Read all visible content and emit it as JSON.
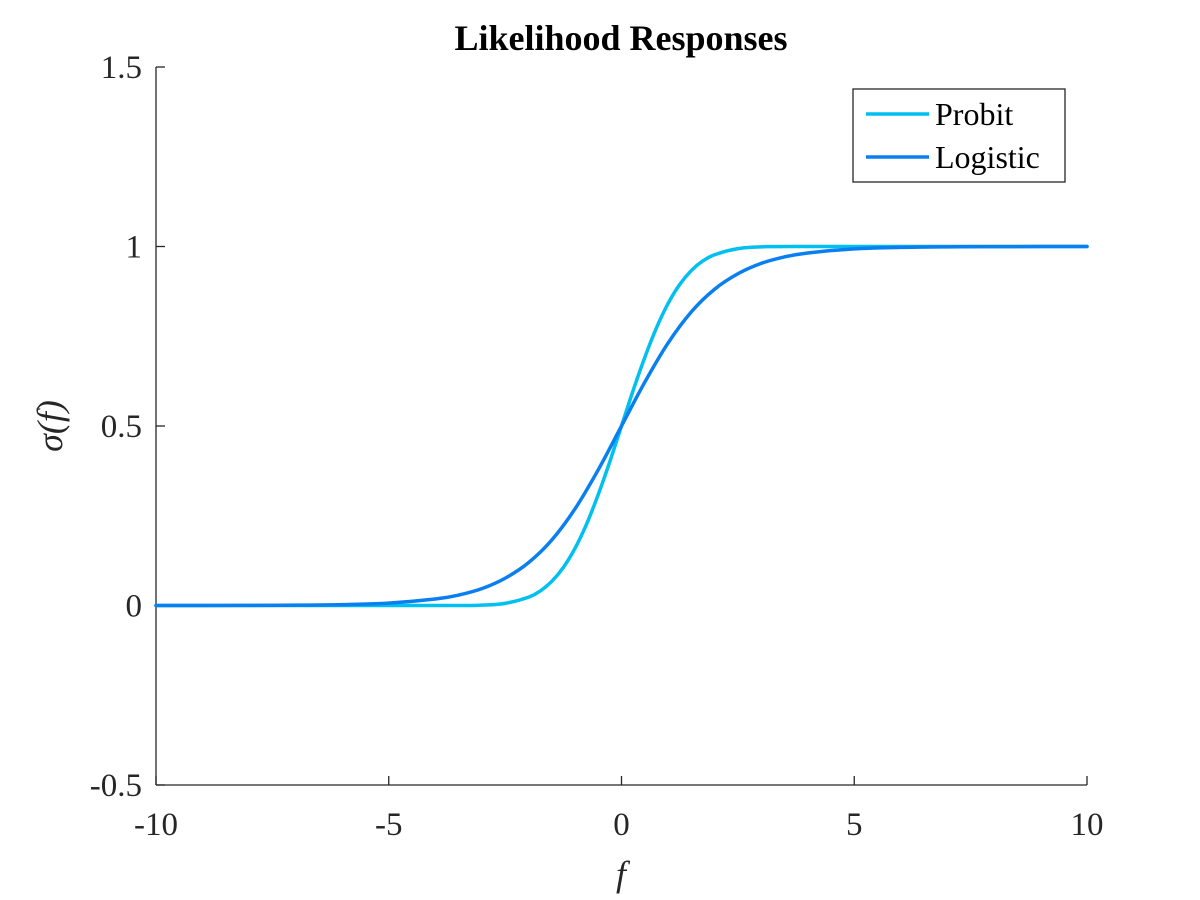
{
  "colors": {
    "probit": "#00c0f0",
    "logistic": "#0a7ff0",
    "axis": "#262626",
    "legend_border": "#262626"
  },
  "chart_data": {
    "type": "line",
    "title": "Likelihood Responses",
    "xlabel": "f",
    "ylabel": "σ(f)",
    "xlim": [
      -10,
      10
    ],
    "ylim": [
      -0.5,
      1.5
    ],
    "xticks": [
      -10,
      -5,
      0,
      5,
      10
    ],
    "xtick_labels": [
      "-10",
      "-5",
      "0",
      "5",
      "10"
    ],
    "yticks": [
      -0.5,
      0,
      0.5,
      1,
      1.5
    ],
    "ytick_labels": [
      "-0.5",
      "0",
      "0.5",
      "1",
      "1.5"
    ],
    "grid": false,
    "legend_position": "top-right",
    "series": [
      {
        "name": "Probit",
        "x": [
          -10,
          -4,
          -3,
          -2.5,
          -2,
          -1.75,
          -1.5,
          -1.25,
          -1,
          -0.75,
          -0.5,
          -0.25,
          0,
          0.25,
          0.5,
          0.75,
          1,
          1.25,
          1.5,
          1.75,
          2,
          2.5,
          3,
          4,
          10
        ],
        "y": [
          0,
          0,
          0.001,
          0.006,
          0.023,
          0.04,
          0.067,
          0.106,
          0.159,
          0.227,
          0.309,
          0.401,
          0.5,
          0.599,
          0.691,
          0.773,
          0.841,
          0.894,
          0.933,
          0.96,
          0.977,
          0.994,
          0.999,
          1,
          1
        ]
      },
      {
        "name": "Logistic",
        "x": [
          -10,
          -8,
          -7,
          -6,
          -5,
          -4,
          -3.5,
          -3,
          -2.5,
          -2,
          -1.5,
          -1,
          -0.5,
          0,
          0.5,
          1,
          1.5,
          2,
          2.5,
          3,
          3.5,
          4,
          5,
          6,
          7,
          8,
          10
        ],
        "y": [
          5e-05,
          0.0003,
          0.0009,
          0.0025,
          0.0067,
          0.018,
          0.029,
          0.047,
          0.076,
          0.119,
          0.182,
          0.269,
          0.378,
          0.5,
          0.622,
          0.731,
          0.818,
          0.881,
          0.924,
          0.953,
          0.971,
          0.982,
          0.9933,
          0.9975,
          0.9991,
          0.9997,
          0.99995
        ]
      }
    ]
  }
}
